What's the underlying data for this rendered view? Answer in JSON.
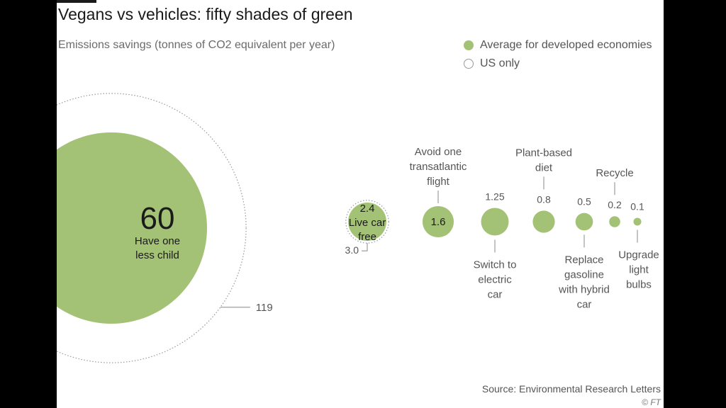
{
  "header": {
    "title": "Vegans vs vehicles: fifty shades of green",
    "subtitle": "Emissions savings (tonnes of CO2 equivalent per year)"
  },
  "legend": {
    "items": [
      {
        "label": "Average for developed economies",
        "style": "filled"
      },
      {
        "label": "US only",
        "style": "outline"
      }
    ]
  },
  "footer": {
    "source": "Source: Environmental Research Letters",
    "credit": "© FT"
  },
  "colors": {
    "bubble_fill": "#a3c275",
    "us_outline": "#9a9a9a",
    "text_dark": "#1a1a1a",
    "text_muted": "#555555",
    "leader_line": "#888888"
  },
  "chart_data": {
    "type": "bubble",
    "title": "Vegans vs vehicles: fifty shades of green",
    "subtitle": "Emissions savings (tonnes of CO2 equivalent per year)",
    "series": [
      {
        "name": "Average for developed economies",
        "points": [
          {
            "label": "Have one less child",
            "value": 60,
            "value_label": "60"
          },
          {
            "label": "Live car free",
            "value": 2.4,
            "value_label": "2.4"
          },
          {
            "label": "Avoid one transatlantic flight",
            "value": 1.6,
            "value_label": "1.6"
          },
          {
            "label": "Switch to electric car",
            "value": 1.25,
            "value_label": "1.25"
          },
          {
            "label": "Plant-based diet",
            "value": 0.8,
            "value_label": "0.8"
          },
          {
            "label": "Replace gasoline with hybrid car",
            "value": 0.5,
            "value_label": "0.5"
          },
          {
            "label": "Recycle",
            "value": 0.2,
            "value_label": "0.2"
          },
          {
            "label": "Upgrade light bulbs",
            "value": 0.1,
            "value_label": "0.1"
          }
        ]
      },
      {
        "name": "US only",
        "points": [
          {
            "label": "Have one less child",
            "value": 119,
            "value_label": "119"
          },
          {
            "label": "Live car free",
            "value": 3.0,
            "value_label": "3.0"
          }
        ]
      }
    ],
    "label_lines": {
      "Have one less child": [
        "Have one",
        "less child"
      ],
      "Live car free": [
        "Live car",
        "free"
      ],
      "Avoid one transatlantic flight": [
        "Avoid one",
        "transatlantic",
        "flight"
      ],
      "Switch to electric car": [
        "Switch to",
        "electric",
        "car"
      ],
      "Plant-based diet": [
        "Plant-based",
        "diet"
      ],
      "Replace gasoline with hybrid car": [
        "Replace",
        "gasoline",
        "with hybrid",
        "car"
      ],
      "Recycle": [
        "Recycle"
      ],
      "Upgrade light bulbs": [
        "Upgrade",
        "light",
        "bulbs"
      ]
    }
  }
}
